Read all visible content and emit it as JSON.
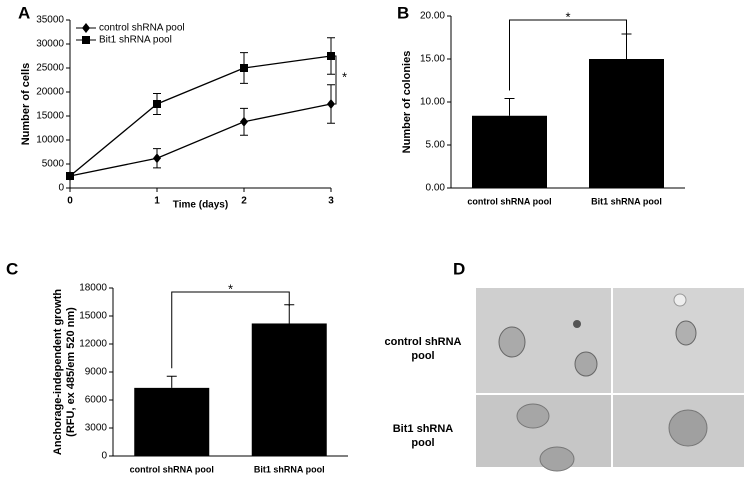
{
  "chart_data": [
    {
      "type": "line",
      "label": "A",
      "xlabel": "Time (days)",
      "ylabel": "Number of cells",
      "x": [
        0,
        1,
        2,
        3
      ],
      "xlim": [
        0,
        3
      ],
      "xticks": [
        0,
        1,
        2,
        3
      ],
      "ylim": [
        0,
        35000
      ],
      "yticks": [
        0,
        5000,
        10000,
        15000,
        20000,
        25000,
        30000,
        35000
      ],
      "series": [
        {
          "name": "control shRNA pool",
          "color": "#000000",
          "marker": "diamond",
          "values": [
            2500,
            6200,
            13800,
            17500
          ],
          "errors": [
            300,
            2000,
            2800,
            4000
          ]
        },
        {
          "name": "Bit1 shRNA pool",
          "color": "#000000",
          "marker": "square",
          "values": [
            2500,
            17500,
            25000,
            27500
          ],
          "errors": [
            300,
            2200,
            3200,
            3800
          ]
        }
      ],
      "legend": "top-left",
      "annotation": "*"
    },
    {
      "type": "bar",
      "label": "B",
      "ylabel": "Number of colonies",
      "categories": [
        "control shRNA pool",
        "Bit1 shRNA pool"
      ],
      "values": [
        8.4,
        15.0
      ],
      "errors": [
        2.0,
        2.9
      ],
      "color": "#000000",
      "ylim": [
        0,
        20
      ],
      "yticks": [
        {
          "value": 0,
          "label": "0.00"
        },
        {
          "value": 5,
          "label": "5.00"
        },
        {
          "value": 10,
          "label": "10.00"
        },
        {
          "value": 15,
          "label": "15.00"
        },
        {
          "value": 20,
          "label": "20.00"
        }
      ],
      "annotation": "*"
    },
    {
      "type": "bar",
      "label": "C",
      "ylabel": [
        "Anchorage-independent growth",
        "(RFU, ex 485/em 520 nm)"
      ],
      "categories": [
        "control shRNA pool",
        "Bit1 shRNA pool"
      ],
      "values": [
        7300,
        14200
      ],
      "errors": [
        1250,
        2000
      ],
      "color": "#000000",
      "ylim": [
        0,
        18000
      ],
      "yticks": [
        0,
        3000,
        6000,
        9000,
        12000,
        15000,
        18000
      ],
      "annotation": "*"
    }
  ],
  "panel_d": {
    "label": "D",
    "rows": [
      [
        "control shRNA",
        "pool"
      ],
      [
        "Bit1 shRNA",
        "pool"
      ]
    ]
  }
}
